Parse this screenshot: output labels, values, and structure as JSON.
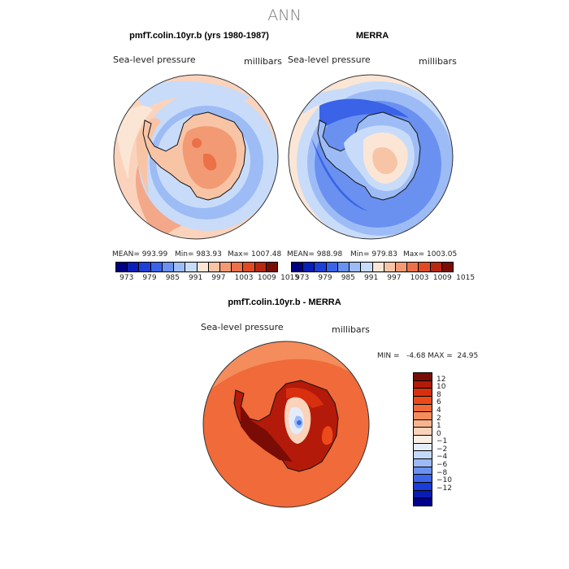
{
  "figure": {
    "title": "ANN"
  },
  "panel_left": {
    "title": "pmfT.colin.10yr.b (yrs 1980-1987)",
    "variable": "Sea-level pressure",
    "units": "millibars",
    "mean": "MEAN= 993.99",
    "min": "Min= 983.93",
    "max": "Max= 1007.48"
  },
  "panel_right": {
    "title": "MERRA",
    "variable": "Sea-level pressure",
    "units": "millibars",
    "mean": "MEAN= 988.98",
    "min": "Min= 979.83",
    "max": "Max= 1003.05"
  },
  "panel_diff": {
    "title": "pmfT.colin.10yr.b - MERRA",
    "variable": "Sea-level pressure",
    "units": "millibars",
    "minmax": "MIN =   -4.68 MAX =  24.95"
  },
  "colorbar_top": {
    "colors": [
      "#000080",
      "#0a1fb8",
      "#1e3fd8",
      "#3a63e8",
      "#6a91f0",
      "#9dbcf6",
      "#c8dcfa",
      "#fbe6d6",
      "#f8c4a6",
      "#f29a74",
      "#ec7048",
      "#e04a22",
      "#b82810",
      "#7a0c06"
    ],
    "ticks": [
      "973",
      "979",
      "985",
      "991",
      "997",
      "1003",
      "1009",
      "1015"
    ]
  },
  "colorbar_diff": {
    "colors": [
      "#7a0c06",
      "#b41a0a",
      "#d8300e",
      "#ec4a1a",
      "#f06a3a",
      "#f48c5c",
      "#f8b48e",
      "#fbd2ba",
      "#fbeee4",
      "#e4ecfa",
      "#c4d8fa",
      "#9cbaf6",
      "#6a92f0",
      "#3c66ea",
      "#1a3cd8",
      "#0a1cb4",
      "#00008c"
    ],
    "ticks": [
      "12",
      "10",
      "8",
      "6",
      "4",
      "2",
      "1",
      "0",
      "−1",
      "−2",
      "−4",
      "−6",
      "−8",
      "−10",
      "−12"
    ]
  },
  "chart_data": [
    {
      "type": "heatmap",
      "projection": "south-polar-stereographic",
      "title": "pmfT.colin.10yr.b (yrs 1980-1987)",
      "variable": "Sea-level pressure",
      "units": "millibars",
      "mean": 993.99,
      "min": 983.93,
      "max": 1007.48,
      "contour_levels": [
        973,
        976,
        979,
        982,
        985,
        988,
        991,
        994,
        997,
        1000,
        1003,
        1006,
        1009,
        1012,
        1015
      ]
    },
    {
      "type": "heatmap",
      "projection": "south-polar-stereographic",
      "title": "MERRA",
      "variable": "Sea-level pressure",
      "units": "millibars",
      "mean": 988.98,
      "min": 979.83,
      "max": 1003.05,
      "contour_levels": [
        973,
        976,
        979,
        982,
        985,
        988,
        991,
        994,
        997,
        1000,
        1003,
        1006,
        1009,
        1012,
        1015
      ]
    },
    {
      "type": "heatmap",
      "projection": "south-polar-stereographic",
      "title": "pmfT.colin.10yr.b - MERRA",
      "variable": "Sea-level pressure",
      "units": "millibars",
      "min": -4.68,
      "max": 24.95,
      "contour_levels": [
        -12,
        -10,
        -8,
        -6,
        -4,
        -2,
        -1,
        0,
        1,
        2,
        4,
        6,
        8,
        10,
        12
      ]
    }
  ]
}
